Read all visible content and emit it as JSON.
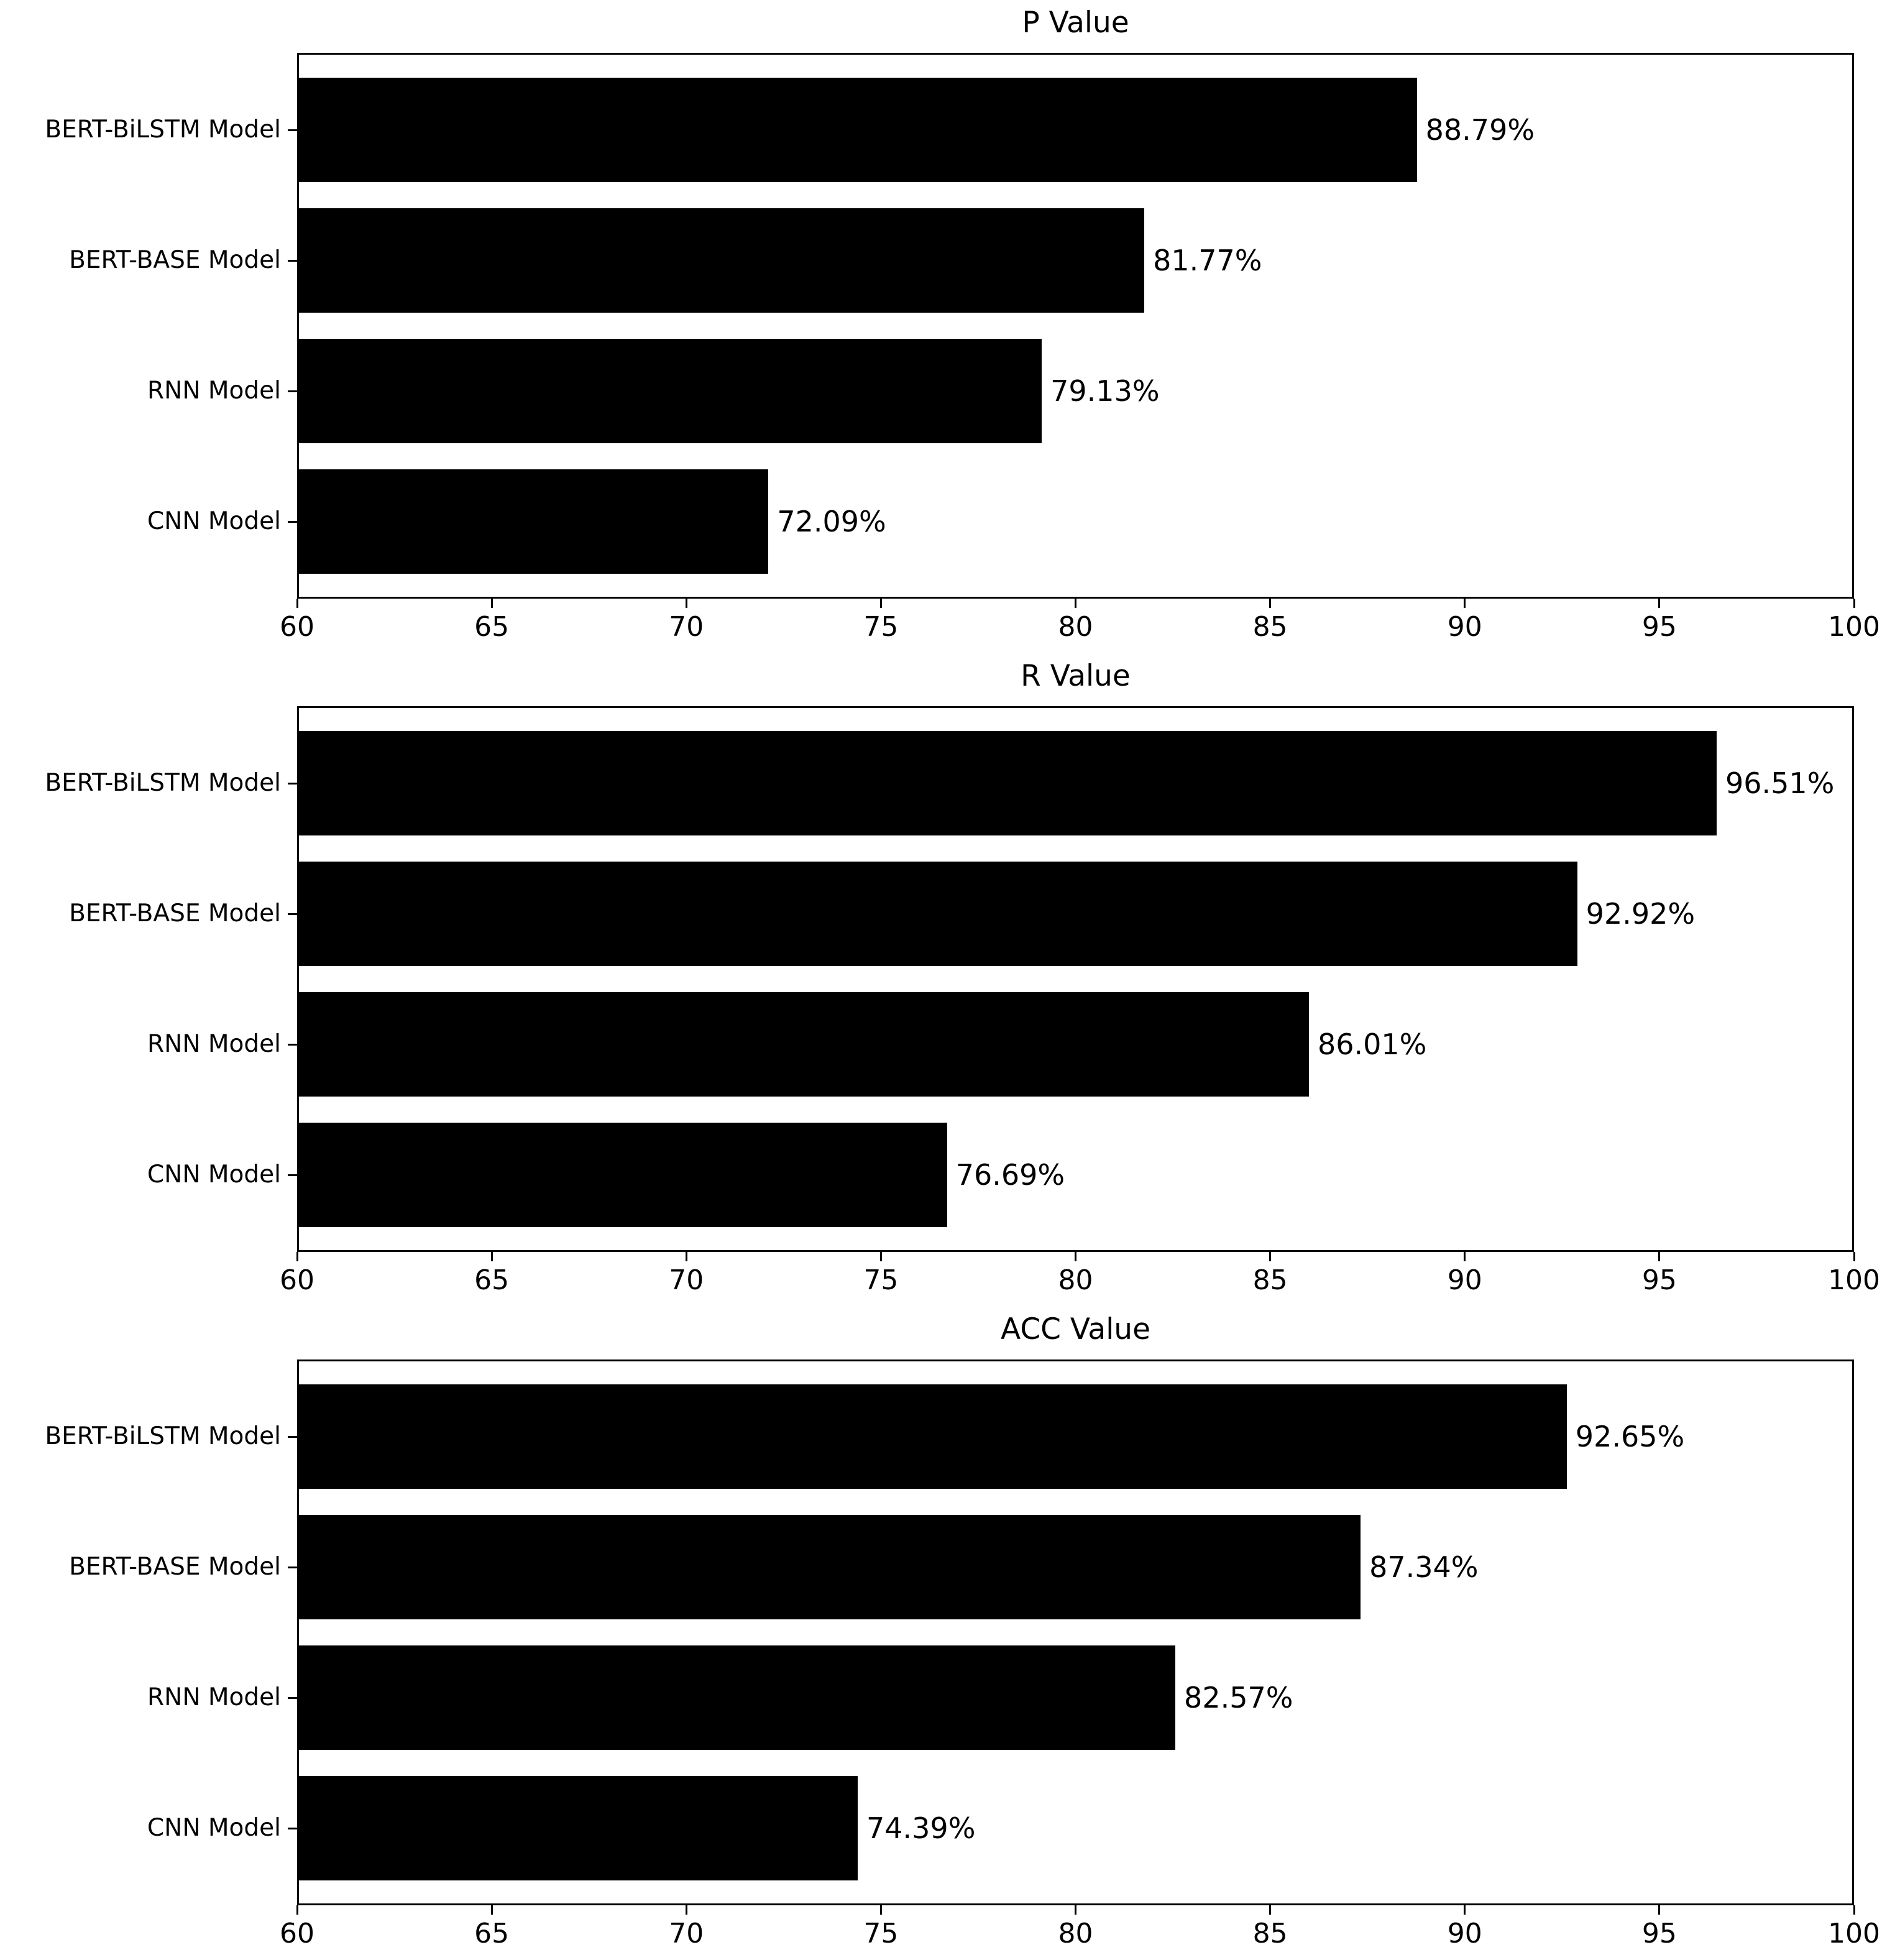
{
  "figure": {
    "background": "#ffffff",
    "bar_color": "#000000",
    "text_color": "#000000"
  },
  "chart_data": [
    {
      "type": "bar",
      "orientation": "horizontal",
      "title": "P Value",
      "categories": [
        "BERT-BiLSTM Model",
        "BERT-BASE Model",
        "RNN Model",
        "CNN Model"
      ],
      "values": [
        88.79,
        81.77,
        79.13,
        72.09
      ],
      "value_labels": [
        "88.79%",
        "81.77%",
        "79.13%",
        "72.09%"
      ],
      "xlim": [
        60,
        100
      ],
      "xticks": [
        60,
        65,
        70,
        75,
        80,
        85,
        90,
        95,
        100
      ],
      "grid": false,
      "legend": "none"
    },
    {
      "type": "bar",
      "orientation": "horizontal",
      "title": "R Value",
      "categories": [
        "BERT-BiLSTM Model",
        "BERT-BASE Model",
        "RNN Model",
        "CNN Model"
      ],
      "values": [
        96.51,
        92.92,
        86.01,
        76.69
      ],
      "value_labels": [
        "96.51%",
        "92.92%",
        "86.01%",
        "76.69%"
      ],
      "xlim": [
        60,
        100
      ],
      "xticks": [
        60,
        65,
        70,
        75,
        80,
        85,
        90,
        95,
        100
      ],
      "grid": false,
      "legend": "none"
    },
    {
      "type": "bar",
      "orientation": "horizontal",
      "title": "ACC Value",
      "categories": [
        "BERT-BiLSTM Model",
        "BERT-BASE Model",
        "RNN Model",
        "CNN Model"
      ],
      "values": [
        92.65,
        87.34,
        82.57,
        74.39
      ],
      "value_labels": [
        "92.65%",
        "87.34%",
        "82.57%",
        "74.39%"
      ],
      "xlim": [
        60,
        100
      ],
      "xticks": [
        60,
        65,
        70,
        75,
        80,
        85,
        90,
        95,
        100
      ],
      "grid": false,
      "legend": "none"
    }
  ]
}
